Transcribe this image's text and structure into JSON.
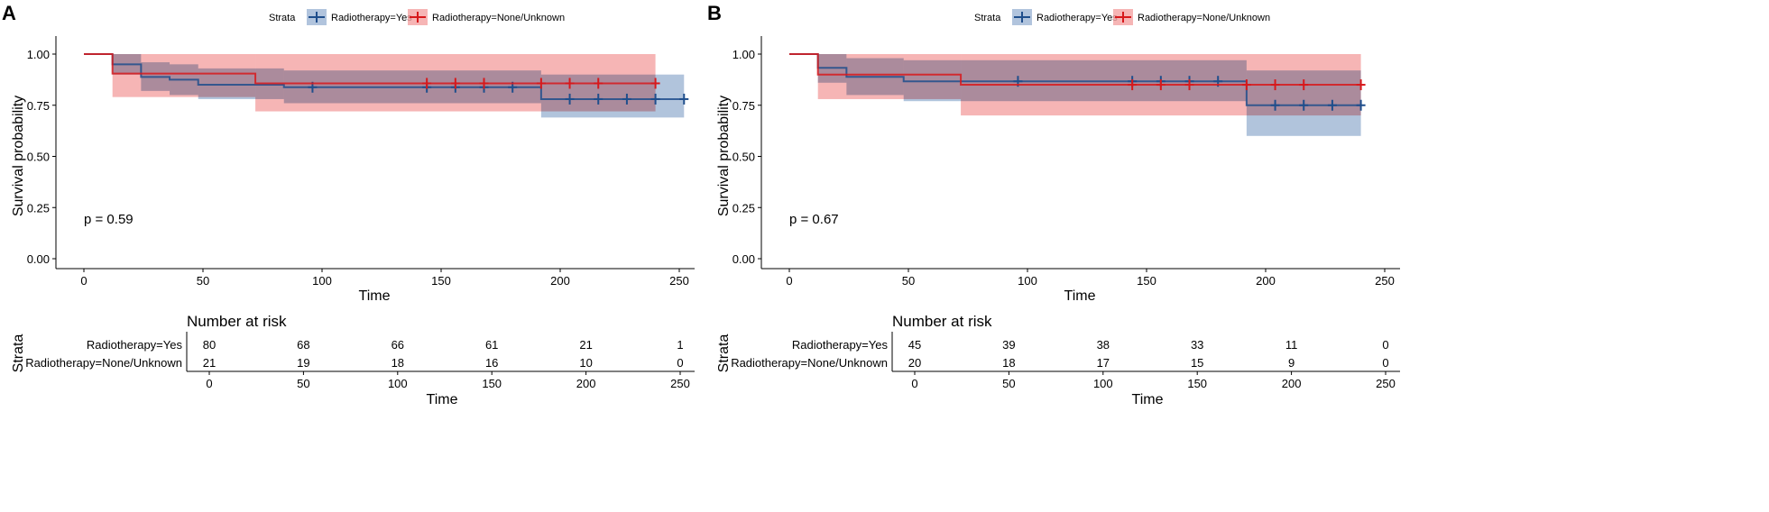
{
  "chart_data": [
    {
      "type": "line",
      "panel_label": "A",
      "legend": {
        "title": "Strata",
        "placement": "top",
        "entries": [
          "Radiotherapy=Yes",
          "Radiotherapy=None/Unknown"
        ]
      },
      "xlabel": "Time",
      "ylabel": "Survival probability",
      "xlim": [
        0,
        250
      ],
      "ylim": [
        0,
        1
      ],
      "xticks": [
        "0",
        "50",
        "100",
        "150",
        "200",
        "250"
      ],
      "yticks": [
        "0.00",
        "0.25",
        "0.50",
        "0.75",
        "1.00"
      ],
      "annotation": "p = 0.59",
      "series": [
        {
          "name": "Radiotherapy=Yes",
          "color": "#1F4E8C",
          "band_color": "#9DB5D4",
          "steps": [
            [
              0,
              1.0
            ],
            [
              12,
              0.95
            ],
            [
              24,
              0.888
            ],
            [
              36,
              0.875
            ],
            [
              48,
              0.85
            ],
            [
              84,
              0.838
            ],
            [
              192,
              0.78
            ],
            [
              252,
              0.78
            ]
          ],
          "ci": [
            [
              12,
              24,
              0.9,
              1.0
            ],
            [
              24,
              36,
              0.82,
              0.96
            ],
            [
              36,
              48,
              0.8,
              0.95
            ],
            [
              48,
              84,
              0.78,
              0.93
            ],
            [
              84,
              192,
              0.76,
              0.92
            ],
            [
              192,
              252,
              0.69,
              0.9
            ]
          ],
          "censor": [
            96,
            144,
            156,
            168,
            180,
            204,
            216,
            228,
            240,
            252
          ]
        },
        {
          "name": "Radiotherapy=None/Unknown",
          "color": "#D7191C",
          "band_color": "#F4A3A3",
          "steps": [
            [
              0,
              1.0
            ],
            [
              12,
              0.905
            ],
            [
              72,
              0.857
            ],
            [
              240,
              0.857
            ]
          ],
          "ci": [
            [
              12,
              72,
              0.79,
              1.0
            ],
            [
              72,
              240,
              0.72,
              1.0
            ]
          ],
          "censor": [
            144,
            156,
            168,
            192,
            204,
            216,
            240
          ]
        }
      ],
      "risk_table": {
        "title": "Number at risk",
        "ylabel": "Strata",
        "xlabel": "Time",
        "times": [
          0,
          50,
          100,
          150,
          200,
          250
        ],
        "rows": [
          {
            "label": "Radiotherapy=Yes",
            "values": [
              "80",
              "68",
              "66",
              "61",
              "21",
              "1"
            ]
          },
          {
            "label": "Radiotherapy=None/Unknown",
            "values": [
              "21",
              "19",
              "18",
              "16",
              "10",
              "0"
            ]
          }
        ]
      }
    },
    {
      "type": "line",
      "panel_label": "B",
      "legend": {
        "title": "Strata",
        "placement": "top",
        "entries": [
          "Radiotherapy=Yes",
          "Radiotherapy=None/Unknown"
        ]
      },
      "xlabel": "Time",
      "ylabel": "Survival probability",
      "xlim": [
        0,
        250
      ],
      "ylim": [
        0,
        1
      ],
      "xticks": [
        "0",
        "50",
        "100",
        "150",
        "200",
        "250"
      ],
      "yticks": [
        "0.00",
        "0.25",
        "0.50",
        "0.75",
        "1.00"
      ],
      "annotation": "p = 0.67",
      "series": [
        {
          "name": "Radiotherapy=Yes",
          "color": "#1F4E8C",
          "band_color": "#9DB5D4",
          "steps": [
            [
              0,
              1.0
            ],
            [
              12,
              0.933
            ],
            [
              24,
              0.889
            ],
            [
              48,
              0.867
            ],
            [
              192,
              0.75
            ],
            [
              240,
              0.75
            ]
          ],
          "ci": [
            [
              12,
              24,
              0.86,
              1.0
            ],
            [
              24,
              48,
              0.8,
              0.98
            ],
            [
              48,
              192,
              0.77,
              0.97
            ],
            [
              192,
              240,
              0.6,
              0.92
            ]
          ],
          "censor": [
            96,
            144,
            156,
            168,
            180,
            204,
            216,
            228,
            240
          ]
        },
        {
          "name": "Radiotherapy=None/Unknown",
          "color": "#D7191C",
          "band_color": "#F4A3A3",
          "steps": [
            [
              0,
              1.0
            ],
            [
              12,
              0.9
            ],
            [
              72,
              0.85
            ],
            [
              240,
              0.85
            ]
          ],
          "ci": [
            [
              12,
              72,
              0.78,
              1.0
            ],
            [
              72,
              240,
              0.7,
              1.0
            ]
          ],
          "censor": [
            144,
            156,
            168,
            192,
            204,
            216,
            240
          ]
        }
      ],
      "risk_table": {
        "title": "Number at risk",
        "ylabel": "Strata",
        "xlabel": "Time",
        "times": [
          0,
          50,
          100,
          150,
          200,
          250
        ],
        "rows": [
          {
            "label": "Radiotherapy=Yes",
            "values": [
              "45",
              "39",
              "38",
              "33",
              "11",
              "0"
            ]
          },
          {
            "label": "Radiotherapy=None/Unknown",
            "values": [
              "20",
              "18",
              "17",
              "15",
              "9",
              "0"
            ]
          }
        ]
      }
    }
  ]
}
